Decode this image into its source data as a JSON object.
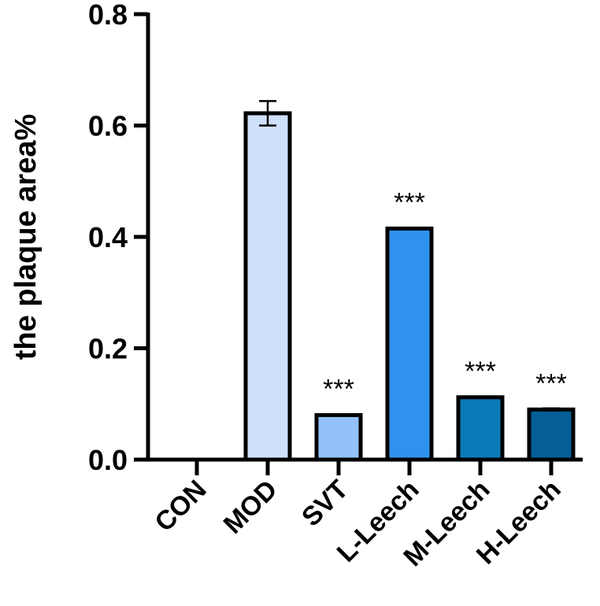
{
  "chart_data": {
    "type": "bar",
    "title": "",
    "xlabel": "",
    "ylabel": "the plaque area%",
    "ylim": [
      0,
      0.8
    ],
    "yticks": [
      "0.0",
      "0.2",
      "0.4",
      "0.6",
      "0.8"
    ],
    "yticks_values": [
      0,
      0.2,
      0.4,
      0.6,
      0.8
    ],
    "categories": [
      "CON",
      "MOD",
      "SVT",
      "L-Leech",
      "M-Leech",
      "H-Leech"
    ],
    "values": [
      0,
      0.622,
      0.08,
      0.415,
      0.112,
      0.09
    ],
    "errors": [
      0,
      0.022,
      0,
      0.001,
      0,
      0.002
    ],
    "significance": [
      "",
      "",
      "***",
      "***",
      "***",
      "***"
    ],
    "bar_colors": [
      "#ffffff",
      "#cfe0fa",
      "#94c1fb",
      "#2f92ee",
      "#0b7ab8",
      "#035f96"
    ],
    "grid": false,
    "legend": "none"
  }
}
